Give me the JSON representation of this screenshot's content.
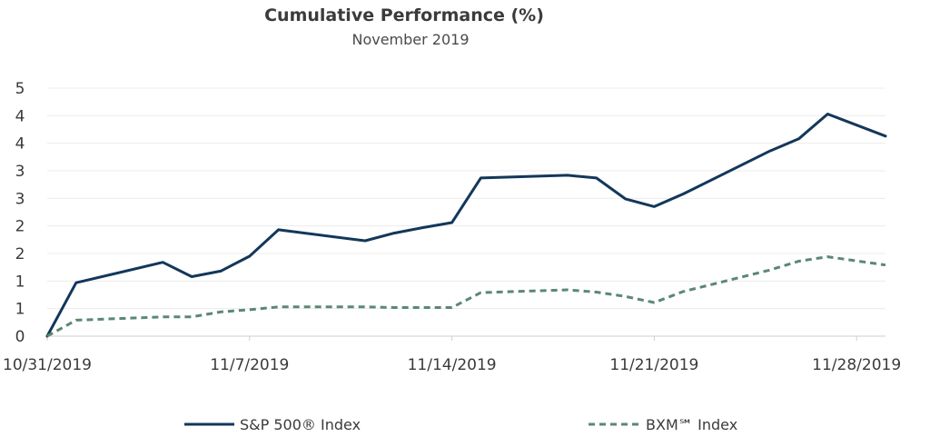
{
  "chart_data": {
    "type": "line",
    "title": "Cumulative Performance (%)",
    "subtitle": "November 2019",
    "xlabel": "",
    "ylabel": "",
    "x": [
      "10/31/2019",
      "11/1/2019",
      "11/4/2019",
      "11/5/2019",
      "11/6/2019",
      "11/7/2019",
      "11/8/2019",
      "11/11/2019",
      "11/12/2019",
      "11/13/2019",
      "11/14/2019",
      "11/15/2019",
      "11/18/2019",
      "11/19/2019",
      "11/20/2019",
      "11/21/2019",
      "11/22/2019",
      "11/25/2019",
      "11/26/2019",
      "11/27/2019",
      "11/29/2019"
    ],
    "x_tick_labels": [
      "10/31/2019",
      "11/7/2019",
      "11/14/2019",
      "11/21/2019",
      "11/28/2019"
    ],
    "y_tick_labels": [
      "0",
      "1",
      "1",
      "2",
      "2",
      "3",
      "3",
      "4",
      "4",
      "5"
    ],
    "ylim": [
      0,
      4.5
    ],
    "grid": true,
    "legend_position": "bottom",
    "series": [
      {
        "name": "S&P 500® Index",
        "color": "#13375a",
        "style": "solid",
        "values": [
          0.0,
          0.97,
          1.34,
          1.08,
          1.18,
          1.45,
          1.93,
          1.73,
          1.87,
          1.97,
          2.06,
          2.87,
          2.92,
          2.87,
          2.49,
          2.35,
          2.58,
          3.36,
          3.58,
          4.03,
          3.63
        ]
      },
      {
        "name": "BXM℠ Index",
        "color": "#5a8873",
        "style": "dashed",
        "values": [
          0.0,
          0.29,
          0.35,
          0.35,
          0.44,
          0.48,
          0.53,
          0.53,
          0.52,
          0.52,
          0.52,
          0.79,
          0.84,
          0.8,
          0.72,
          0.61,
          0.81,
          1.2,
          1.36,
          1.44,
          1.29
        ]
      }
    ]
  }
}
